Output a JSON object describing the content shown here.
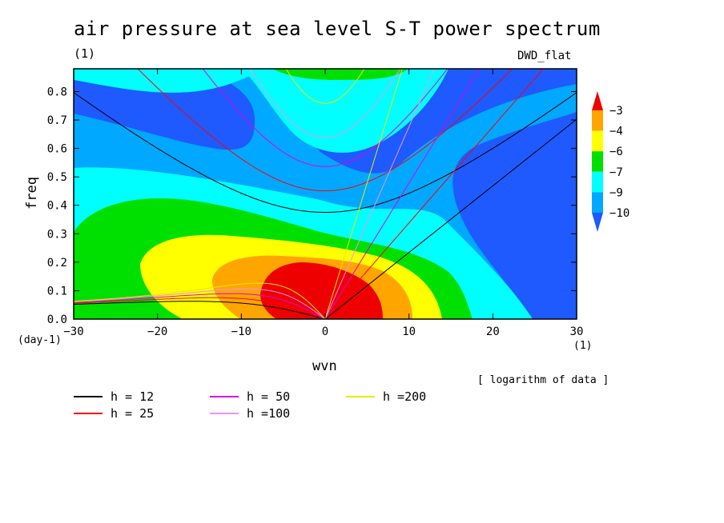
{
  "header": {
    "title": "air pressure at sea level S-T power spectrum",
    "subtitle": "(1)",
    "tag": "DWD_flat"
  },
  "chart_data": {
    "type": "heatmap",
    "xlabel": "wvn",
    "ylabel": "freq",
    "x_unit": "(1)",
    "y_unit": "(day-1)",
    "xlim": [
      -30,
      30
    ],
    "ylim": [
      0,
      0.88
    ],
    "xticks": [
      -30,
      -20,
      -10,
      0,
      10,
      20,
      30
    ],
    "yticks": [
      0.0,
      0.1,
      0.2,
      0.3,
      0.4,
      0.5,
      0.6,
      0.7,
      0.8
    ],
    "colorbar": {
      "labels": [
        "-3",
        "-4",
        "-6",
        "-7",
        "-9",
        "-10"
      ],
      "colors": [
        "#ee0000",
        "#ffa500",
        "#ffff00",
        "#00e000",
        "#00ffff",
        "#00a8ff",
        "#1e5aff"
      ]
    },
    "note": "[ logarithm of data ]",
    "dispersion_curves": [
      {
        "name": "h = 12",
        "h": 12,
        "color": "#000000"
      },
      {
        "name": "h = 25",
        "h": 25,
        "color": "#ff0000"
      },
      {
        "name": "h = 50",
        "h": 50,
        "color": "#e000e0"
      },
      {
        "name": "h =100",
        "h": 100,
        "color": "#f090f0"
      },
      {
        "name": "h =200",
        "h": 200,
        "color": "#e8e800"
      }
    ]
  }
}
